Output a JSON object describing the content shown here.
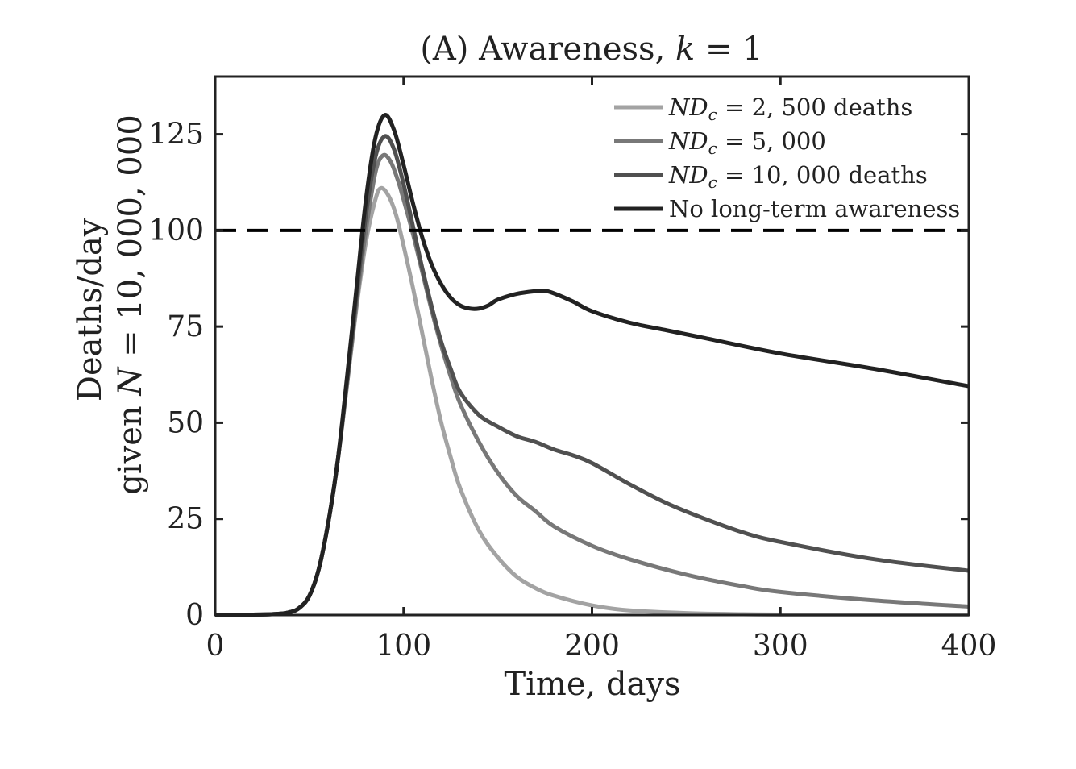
{
  "chart_data": {
    "type": "line",
    "title": "(A) Awareness, k = 1",
    "xlabel": "Time, days",
    "ylabel_line1": "Deaths/day",
    "ylabel_line2": "given N = 10, 000, 000",
    "xlim": [
      0,
      400
    ],
    "ylim": [
      0,
      140
    ],
    "xticks": [
      0,
      100,
      200,
      300,
      400
    ],
    "yticks": [
      0,
      25,
      50,
      75,
      100,
      125
    ],
    "xtick_labels": [
      "0",
      "100",
      "200",
      "300",
      "400"
    ],
    "ytick_labels": [
      "0",
      "25",
      "50",
      "75",
      "100",
      "125"
    ],
    "grid": false,
    "legend_position": "top-right",
    "reference_line": {
      "y": 100,
      "style": "dashed",
      "color": "#000000"
    },
    "series": [
      {
        "name": "ND_c = 2, 500 deaths",
        "color": "#a3a3a3",
        "x": [
          0,
          30,
          40,
          45,
          50,
          55,
          60,
          65,
          70,
          75,
          80,
          85,
          88,
          92,
          96,
          100,
          105,
          110,
          115,
          120,
          125,
          130,
          140,
          150,
          160,
          170,
          180,
          200,
          220,
          250,
          280,
          300,
          350,
          400
        ],
        "y": [
          0,
          0.2,
          0.8,
          2,
          5,
          12,
          24,
          40,
          60,
          80,
          97,
          108,
          111,
          109,
          104,
          96,
          85,
          73,
          61,
          50,
          41,
          33,
          22,
          15,
          10,
          7,
          5,
          2.5,
          1.2,
          0.5,
          0.2,
          0.1,
          0,
          0
        ]
      },
      {
        "name": "ND_c = 5, 000",
        "color": "#787878",
        "x": [
          0,
          30,
          40,
          45,
          50,
          55,
          60,
          65,
          70,
          75,
          80,
          85,
          89,
          93,
          97,
          100,
          105,
          110,
          115,
          120,
          125,
          130,
          140,
          150,
          160,
          170,
          180,
          200,
          220,
          250,
          280,
          300,
          350,
          400
        ],
        "y": [
          0,
          0.2,
          0.8,
          2,
          5,
          12,
          24,
          40,
          60,
          81,
          100,
          115,
          119.5,
          118,
          113,
          108,
          99,
          89,
          79,
          70,
          62,
          55,
          45,
          37,
          31,
          27,
          23,
          18,
          14.5,
          10.5,
          7.5,
          6,
          3.8,
          2.2
        ]
      },
      {
        "name": "ND_c = 10, 000 deaths",
        "color": "#505050",
        "x": [
          0,
          30,
          40,
          45,
          50,
          55,
          60,
          65,
          70,
          75,
          80,
          85,
          90,
          95,
          100,
          105,
          110,
          115,
          120,
          125,
          130,
          140,
          150,
          160,
          170,
          180,
          190,
          200,
          220,
          240,
          260,
          280,
          300,
          350,
          400
        ],
        "y": [
          0,
          0.2,
          0.8,
          2,
          5,
          12,
          24,
          40,
          61,
          83,
          104,
          119,
          124.5,
          121,
          112,
          101,
          90,
          80,
          71,
          64,
          58,
          52,
          49,
          46.5,
          45,
          43,
          41.5,
          39.5,
          34,
          29,
          25,
          21.5,
          19,
          14.5,
          11.5
        ]
      },
      {
        "name": "No long-term awareness",
        "color": "#222222",
        "x": [
          0,
          30,
          40,
          45,
          50,
          55,
          60,
          65,
          70,
          75,
          80,
          85,
          90,
          95,
          100,
          105,
          110,
          115,
          120,
          125,
          130,
          135,
          140,
          145,
          150,
          160,
          170,
          175,
          180,
          190,
          200,
          220,
          240,
          260,
          300,
          350,
          400
        ],
        "y": [
          0,
          0.2,
          0.8,
          2,
          5,
          12,
          24,
          40,
          62,
          85,
          108,
          124,
          130,
          126,
          117,
          107,
          98,
          91,
          86,
          82.5,
          80.5,
          79.7,
          79.7,
          80.5,
          82,
          83.5,
          84.2,
          84.3,
          83.6,
          81.5,
          79,
          76,
          74,
          72,
          68,
          64,
          59.5
        ]
      }
    ]
  },
  "legend": {
    "entries": [
      {
        "prefix": "ND",
        "sub": "c",
        "suffix": " = 2, 500 deaths"
      },
      {
        "prefix": "ND",
        "sub": "c",
        "suffix": " = 5, 000"
      },
      {
        "prefix": "ND",
        "sub": "c",
        "suffix": " = 10, 000 deaths"
      },
      {
        "prefix": "",
        "sub": "",
        "suffix": "No long-term awareness"
      }
    ]
  },
  "title_parts": {
    "pre": "(A) Awareness, ",
    "var": "k",
    "post": " = 1"
  },
  "ylabel_parts": {
    "line1": "Deaths/day",
    "line2_pre": "given ",
    "line2_var": "N",
    "line2_post": " = 10, 000, 000"
  }
}
